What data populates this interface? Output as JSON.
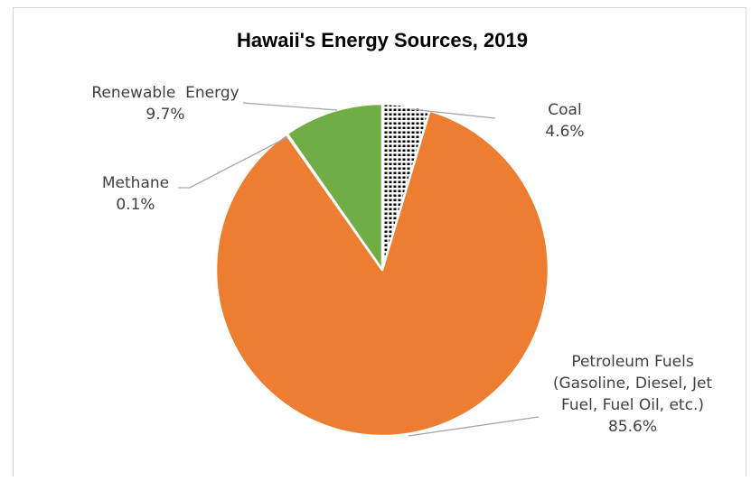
{
  "chart_data": {
    "type": "pie",
    "title": "Hawaii's Energy Sources, 2019",
    "slices": [
      {
        "label_lines": [
          "Coal"
        ],
        "value": 4.6,
        "value_label": "4.6%",
        "fill": "pattern-dots"
      },
      {
        "label_lines": [
          "Petroleum Fuels",
          "(Gasoline, Diesel, Jet",
          "Fuel, Fuel Oil, etc.)"
        ],
        "value": 85.6,
        "value_label": "85.6%",
        "fill": "#ED7D31"
      },
      {
        "label_lines": [
          "Methane"
        ],
        "value": 0.1,
        "value_label": "0.1%",
        "fill": "#A5A5A5"
      },
      {
        "label_lines": [
          "Renewable  Energy"
        ],
        "value": 9.7,
        "value_label": "9.7%",
        "fill": "#70AD47"
      }
    ],
    "start_angle_deg": 0,
    "direction": "clockwise",
    "legend": "none",
    "data_labels": "outside-with-leader-lines"
  }
}
